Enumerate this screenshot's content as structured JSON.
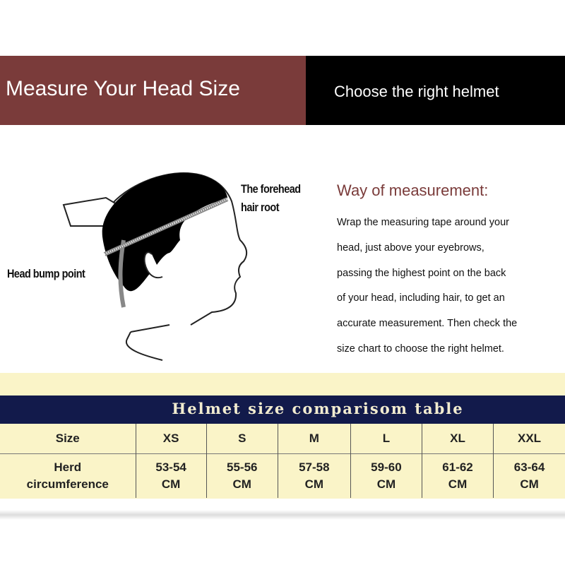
{
  "header": {
    "left_title": "Measure Your Head Size",
    "right_title": "Choose the right helmet",
    "left_color": "#7a3b3a",
    "right_color": "#000000"
  },
  "illustration": {
    "label_forehead_1": "The forehead",
    "label_forehead_2": "hair root",
    "label_bump": "Head bump point"
  },
  "measurement": {
    "title": "Way of measurement:",
    "lines": [
      "Wrap the measuring tape around your",
      "head, just above your eyebrows,",
      "passing the highest point on the back",
      "of your head, including hair, to get an",
      "accurate measurement. Then check the",
      "size chart to choose the right helmet."
    ]
  },
  "table": {
    "title": "Helmet size comparisom table",
    "row1_header": "Size",
    "row2_header_1": "Herd",
    "row2_header_2": "circumference",
    "sizes": [
      "XS",
      "S",
      "M",
      "L",
      "XL",
      "XXL"
    ],
    "ranges": [
      "53-54",
      "55-56",
      "57-58",
      "59-60",
      "61-62",
      "63-64"
    ],
    "unit": "CM",
    "colors": {
      "band": "#faf4c8",
      "title_bar": "#121a4b"
    }
  }
}
